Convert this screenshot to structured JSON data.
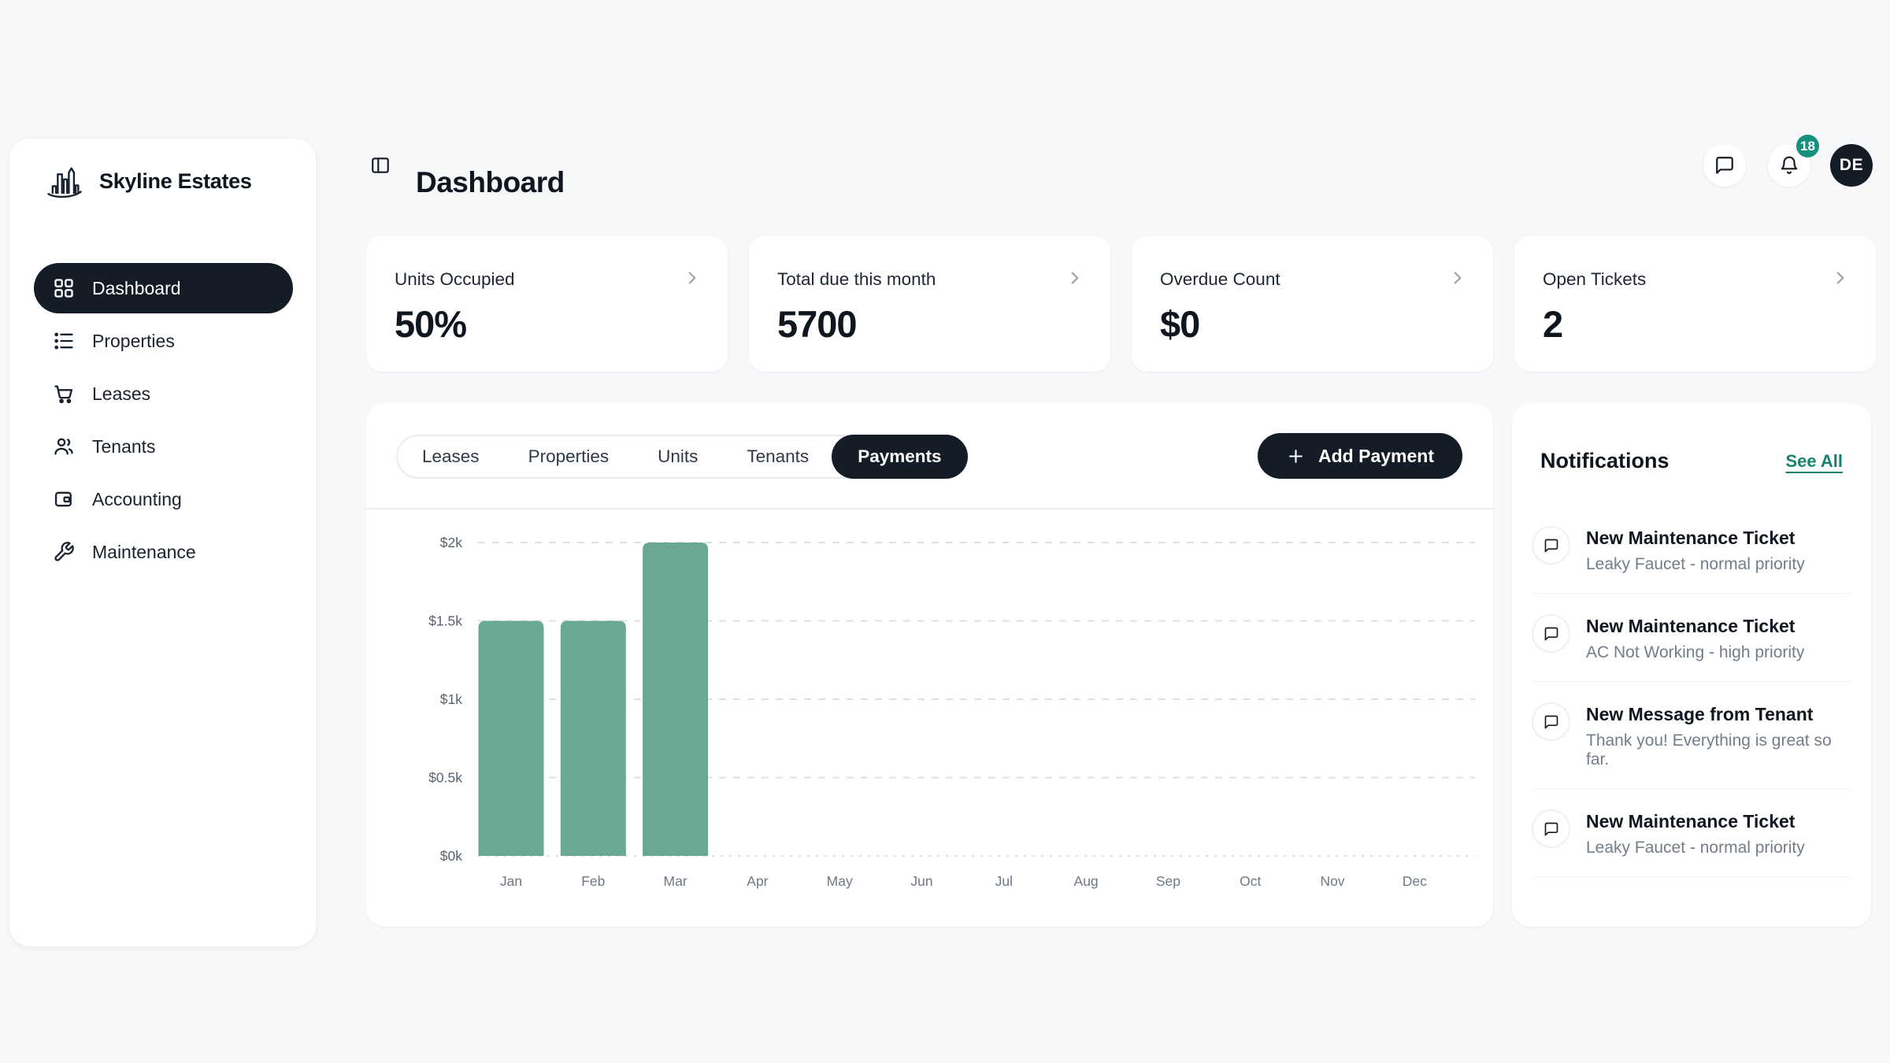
{
  "brand": {
    "name": "Skyline Estates",
    "logo_icon": "skyline-logo"
  },
  "sidebar": {
    "items": [
      {
        "label": "Dashboard",
        "icon": "grid",
        "active": true
      },
      {
        "label": "Properties",
        "icon": "list",
        "active": false
      },
      {
        "label": "Leases",
        "icon": "cart",
        "active": false
      },
      {
        "label": "Tenants",
        "icon": "users",
        "active": false
      },
      {
        "label": "Accounting",
        "icon": "wallet",
        "active": false
      },
      {
        "label": "Maintenance",
        "icon": "wrench",
        "active": false
      }
    ]
  },
  "header": {
    "title": "Dashboard",
    "toggle_icon": "panel-left"
  },
  "topbar": {
    "messages_icon": "message",
    "alerts_icon": "bell",
    "notification_badge": "18",
    "avatar_initials": "DE"
  },
  "stat_cards": [
    {
      "label": "Units Occupied",
      "value": "50%"
    },
    {
      "label": "Total due this month",
      "value": "5700"
    },
    {
      "label": "Overdue Count",
      "value": "$0"
    },
    {
      "label": "Open Tickets",
      "value": "2"
    }
  ],
  "main_tabs": [
    {
      "label": "Leases",
      "active": false
    },
    {
      "label": "Properties",
      "active": false
    },
    {
      "label": "Units",
      "active": false
    },
    {
      "label": "Tenants",
      "active": false
    },
    {
      "label": "Payments",
      "active": true
    }
  ],
  "actions": {
    "add_payment_label": "Add Payment",
    "add_icon": "plus"
  },
  "chart_data": {
    "type": "bar",
    "categories": [
      "Jan",
      "Feb",
      "Mar",
      "Apr",
      "May",
      "Jun",
      "Jul",
      "Aug",
      "Sep",
      "Oct",
      "Nov",
      "Dec"
    ],
    "values": [
      1500,
      1500,
      2000,
      0,
      0,
      0,
      0,
      0,
      0,
      0,
      0,
      0
    ],
    "title": "",
    "xlabel": "",
    "ylabel": "",
    "ylim": [
      0,
      2000
    ],
    "yticks": [
      {
        "value": 0,
        "label": "$0k"
      },
      {
        "value": 500,
        "label": "$0.5k"
      },
      {
        "value": 1000,
        "label": "$1k"
      },
      {
        "value": 1500,
        "label": "$1.5k"
      },
      {
        "value": 2000,
        "label": "$2k"
      }
    ],
    "grid": "dashed-horizontal",
    "legend": "none",
    "bar_color": "#6BA894"
  },
  "notifications": {
    "title": "Notifications",
    "see_all_label": "See All",
    "item_icon": "message",
    "items": [
      {
        "title": "New Maintenance Ticket",
        "subtitle": "Leaky Faucet - normal priority"
      },
      {
        "title": "New Maintenance Ticket",
        "subtitle": "AC Not Working - high priority"
      },
      {
        "title": "New Message from Tenant",
        "subtitle": "Thank you! Everything is great so far."
      },
      {
        "title": "New Maintenance Ticket",
        "subtitle": "Leaky Faucet - normal priority"
      }
    ],
    "clipped_item_visible": true
  },
  "colors": {
    "dark_navy": "#141C28",
    "accent_teal": "#15836F",
    "badge_teal": "#15917D",
    "bar_teal": "#6BA894",
    "page_bg": "#F7F8FA"
  }
}
